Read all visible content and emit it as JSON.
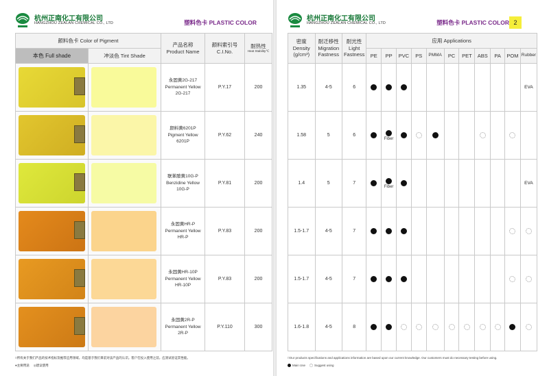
{
  "company": {
    "name_cn": "杭州正南化工有限公司",
    "name_en": "HANGZHOU ZEALAN CHEMICAL CO., LTD",
    "brand": "塑料色卡 PLASTIC COLOR"
  },
  "left_page": {
    "headers": {
      "pigment_color": "颜料色卡 Color of Pigment",
      "full_shade": "本色 Full shade",
      "tint_shade": "冲淡色  Tint Shade",
      "product_name_cn": "产品名称",
      "product_name_en": "Product Name",
      "ci_no_cn": "颜料索引号",
      "ci_no_en": "C.I.No.",
      "heat_cn": "耐热性",
      "heat_en": "Heat Stability℃"
    },
    "footnote": "□所有关于我们产品的技术指标及推荐应用领域，均是基于我们目前对该产品的认识。客户在投入使用之前，应测试验证其性能。",
    "legend": {
      "main_use": "●主要用途",
      "suggest_use": "◎建议使用"
    }
  },
  "right_page": {
    "page_number": "2",
    "headers": {
      "density_cn": "密度",
      "density_en": "Density",
      "density_unit": "(g/cm³)",
      "migration_cn": "耐迁移性",
      "migration_en1": "Migration",
      "migration_en2": "Fastness",
      "light_cn": "耐光性",
      "light_en1": "Light",
      "light_en2": "Fastness",
      "applications": "应用 Applications",
      "app_cols": [
        "PE",
        "PP",
        "PVC",
        "PS",
        "PMMA",
        "PC",
        "PET",
        "ABS",
        "PA",
        "POM",
        "Rubber"
      ]
    },
    "footnote": "□Our products specifications and applications information are based upon our current knowledge. Our customers must do necessary testing before using.",
    "legend": {
      "main_use": "Main Use",
      "suggest_use": "Suggest using"
    }
  },
  "colors": {
    "brand_purple": "#7a2a8a",
    "company_green": "#1a7a3a",
    "page_tag": "#f5ee3a"
  },
  "products": [
    {
      "name_cn": "永固黄2G-217",
      "name_en1": "Permanent Yellow",
      "name_en2": "2G-217",
      "ci": "P.Y.17",
      "heat": "200",
      "density": "1.35",
      "migration": "4-5",
      "light": "6",
      "full_color": "#e8d936",
      "full_edge": "#d8c42a",
      "tint_color": "#f9fa9a",
      "apps": [
        "main",
        "main",
        "main",
        "",
        "",
        "",
        "",
        "",
        "",
        "",
        "EVA"
      ],
      "app_notes": [
        "",
        "",
        "",
        "",
        "",
        "",
        "",
        "",
        "",
        "",
        ""
      ]
    },
    {
      "name_cn": "颜料黄6201P",
      "name_en1": "Pigment Yellow",
      "name_en2": "6201P",
      "ci": "P.Y.62",
      "heat": "240",
      "density": "1.58",
      "migration": "5",
      "light": "6",
      "full_color": "#e2c62e",
      "full_edge": "#cfae22",
      "tint_color": "#fbf6a8",
      "apps": [
        "main",
        "main",
        "main",
        "sugg",
        "main",
        "",
        "",
        "sugg",
        "",
        "sugg",
        ""
      ],
      "app_notes": [
        "",
        "Fiber",
        "",
        "",
        "",
        "",
        "",
        "",
        "",
        "",
        ""
      ]
    },
    {
      "name_cn": "联苯胺黄10G-P",
      "name_en1": "Benzidine Yellow",
      "name_en2": "10G-P",
      "ci": "P.Y.81",
      "heat": "200",
      "density": "1.4",
      "migration": "5",
      "light": "7",
      "full_color": "#dfe83c",
      "full_edge": "#cdd52e",
      "tint_color": "#f6fba4",
      "apps": [
        "main",
        "main",
        "main",
        "",
        "",
        "",
        "",
        "",
        "",
        "",
        "EVA"
      ],
      "app_notes": [
        "",
        "Fiber",
        "",
        "",
        "",
        "",
        "",
        "",
        "",
        "",
        ""
      ]
    },
    {
      "name_cn": "永固黄HR-P",
      "name_en1": "Permanent Yellow",
      "name_en2": "HR-P",
      "ci": "P.Y.83",
      "heat": "200",
      "density": "1.5-1.7",
      "migration": "4-5",
      "light": "7",
      "full_color": "#e48a1c",
      "full_edge": "#cc7414",
      "tint_color": "#fbd48c",
      "apps": [
        "main",
        "main",
        "main",
        "",
        "",
        "",
        "",
        "",
        "",
        "sugg",
        "sugg"
      ],
      "app_notes": [
        "",
        "",
        "",
        "",
        "",
        "",
        "",
        "",
        "",
        "",
        ""
      ]
    },
    {
      "name_cn": "永固黄HR-10P",
      "name_en1": "Permanent Yellow",
      "name_en2": "HR-10P",
      "ci": "P.Y.83",
      "heat": "200",
      "density": "1.5-1.7",
      "migration": "4-5",
      "light": "7",
      "full_color": "#e89a22",
      "full_edge": "#d28418",
      "tint_color": "#fcd896",
      "apps": [
        "main",
        "main",
        "main",
        "",
        "",
        "",
        "",
        "",
        "",
        "sugg",
        "sugg"
      ],
      "app_notes": [
        "",
        "",
        "",
        "",
        "",
        "",
        "",
        "",
        "",
        "",
        ""
      ]
    },
    {
      "name_cn": "永固黄2R-P",
      "name_en1": "Permanent Yellow",
      "name_en2": "2R-P",
      "ci": "P.Y.110",
      "heat": "300",
      "density": "1.6-1.8",
      "migration": "4-5",
      "light": "8",
      "full_color": "#e4901e",
      "full_edge": "#cc7a16",
      "tint_color": "#fcd4a0",
      "apps": [
        "main",
        "main",
        "sugg",
        "sugg",
        "sugg",
        "sugg",
        "sugg",
        "sugg",
        "sugg",
        "main",
        "sugg"
      ],
      "app_notes": [
        "",
        "",
        "",
        "",
        "",
        "",
        "",
        "",
        "",
        "",
        ""
      ]
    }
  ]
}
